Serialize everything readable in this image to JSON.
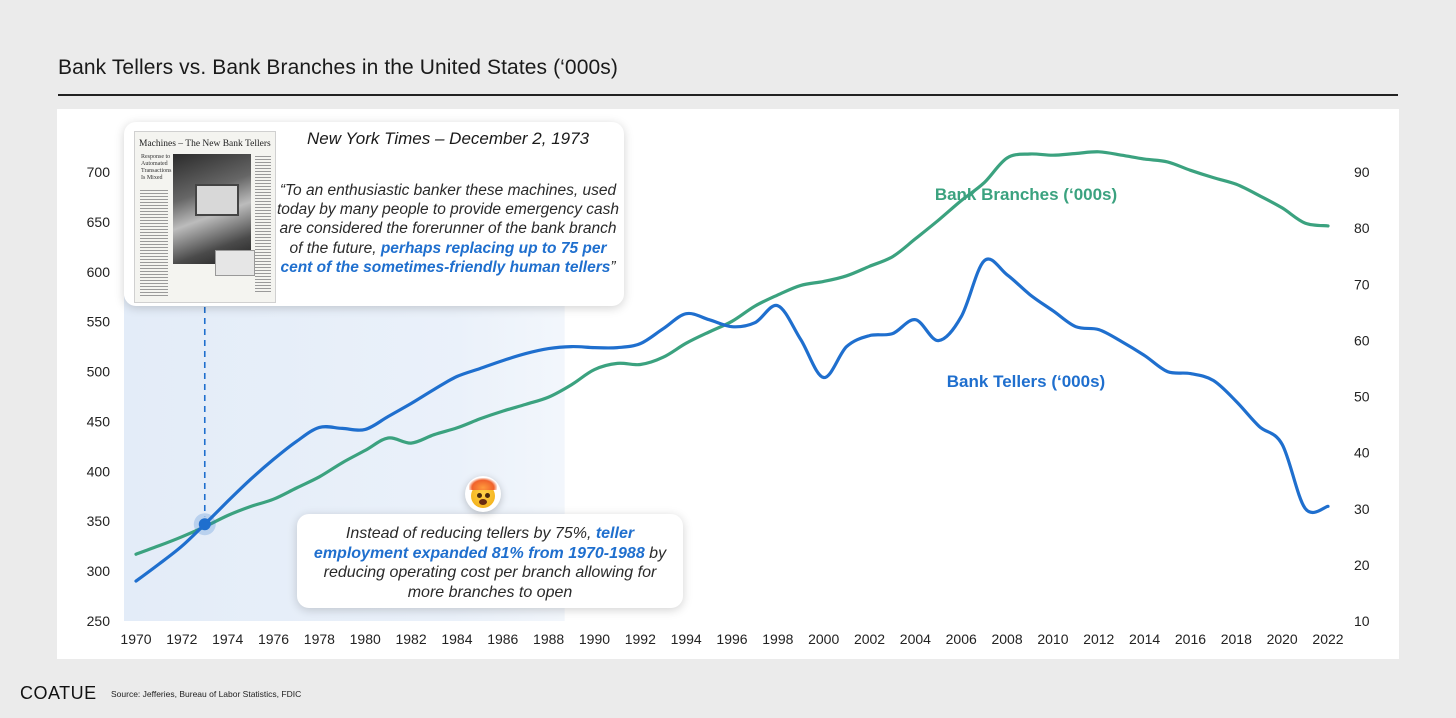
{
  "title": "Bank Tellers vs. Bank Branches in the United States (‘000s)",
  "logo": "COATUE",
  "source": "Source: Jefferies, Bureau of Labor Statistics, FDIC",
  "nyt_callout": {
    "source": "New York Times – December 2, 1973",
    "quote_plain": "“To an enthusiastic banker these machines, used today by many people to provide emergency cash are considered the forerunner of the bank branch of the future, ",
    "quote_highlight": "perhaps replacing up to 75 per cent of the sometimes-friendly human tellers",
    "quote_end": "”",
    "clipping_headline": "Machines – The New Bank Tellers",
    "clipping_subhead": "Response to Automated Transactions Is Mixed"
  },
  "insight_callout": {
    "text_before": "Instead of reducing tellers by 75%, ",
    "text_highlight": "teller employment expanded 81% from 1970-1988",
    "text_after": " by reducing operating cost per branch allowing for more branches to open",
    "emoji": "exploding-head-icon"
  },
  "colors": {
    "tellers": "#1f6fce",
    "branches": "#3ba27f",
    "shade": "#e3ecf8",
    "highlight": "#1f6fce"
  },
  "chart_data": {
    "type": "line",
    "title": "Bank Tellers vs. Bank Branches in the United States (‘000s)",
    "x_ticks": [
      1970,
      1972,
      1974,
      1976,
      1978,
      1980,
      1982,
      1984,
      1986,
      1988,
      1990,
      1992,
      1994,
      1996,
      1998,
      2000,
      2002,
      2004,
      2006,
      2008,
      2010,
      2012,
      2014,
      2016,
      2018,
      2020,
      2022
    ],
    "xlim": [
      1970,
      2022
    ],
    "y_left": {
      "ticks": [
        250,
        300,
        350,
        400,
        450,
        500,
        550,
        600,
        650,
        700
      ],
      "ylim": [
        250,
        700
      ],
      "label": ""
    },
    "y_right": {
      "ticks": [
        10,
        20,
        30,
        40,
        50,
        60,
        70,
        80,
        90
      ],
      "ylim": [
        10,
        90
      ],
      "label": ""
    },
    "shaded_region": {
      "x_from": 1970,
      "x_to": 1988.7
    },
    "marker": {
      "series": "Bank Tellers (‘000s)",
      "x": 1973,
      "y": 347
    },
    "series": [
      {
        "name": "Bank Tellers (‘000s)",
        "axis": "left",
        "x": [
          1970,
          1971,
          1972,
          1973,
          1974,
          1975,
          1976,
          1977,
          1978,
          1979,
          1980,
          1981,
          1982,
          1983,
          1984,
          1985,
          1986,
          1987,
          1988,
          1989,
          1990,
          1991,
          1992,
          1993,
          1994,
          1995,
          1996,
          1997,
          1998,
          1999,
          2000,
          2001,
          2002,
          2003,
          2004,
          2005,
          2006,
          2007,
          2008,
          2009,
          2010,
          2011,
          2012,
          2013,
          2014,
          2015,
          2016,
          2017,
          2018,
          2019,
          2020,
          2021,
          2022
        ],
        "values": [
          290,
          307,
          325,
          347,
          370,
          392,
          412,
          430,
          444,
          443,
          442,
          455,
          468,
          482,
          495,
          503,
          511,
          518,
          523,
          525,
          524,
          524,
          528,
          543,
          558,
          552,
          545,
          549,
          566,
          532,
          494,
          525,
          536,
          538,
          552,
          531,
          555,
          611,
          597,
          577,
          561,
          545,
          542,
          530,
          516,
          500,
          498,
          491,
          470,
          445,
          427,
          363,
          365
        ]
      },
      {
        "name": "Bank Branches (‘000s)",
        "axis": "right",
        "x": [
          1970,
          1971,
          1972,
          1973,
          1974,
          1975,
          1976,
          1977,
          1978,
          1979,
          1980,
          1981,
          1982,
          1983,
          1984,
          1985,
          1986,
          1987,
          1988,
          1989,
          1990,
          1991,
          1992,
          1993,
          1994,
          1995,
          1996,
          1997,
          1998,
          1999,
          2000,
          2001,
          2002,
          2003,
          2004,
          2005,
          2006,
          2007,
          2008,
          2009,
          2010,
          2011,
          2012,
          2013,
          2014,
          2015,
          2016,
          2017,
          2018,
          2019,
          2020,
          2021,
          2022
        ],
        "values": [
          21.9,
          23.4,
          25.0,
          26.8,
          28.8,
          30.4,
          31.7,
          33.7,
          35.7,
          38.2,
          40.4,
          42.6,
          41.7,
          43.2,
          44.4,
          46.0,
          47.4,
          48.6,
          49.9,
          52.1,
          54.8,
          55.9,
          55.7,
          57.0,
          59.5,
          61.5,
          63.4,
          66.1,
          68.1,
          69.8,
          70.5,
          71.5,
          73.2,
          74.9,
          78.1,
          81.4,
          84.9,
          88.1,
          92.5,
          93.2,
          93.0,
          93.3,
          93.6,
          93.0,
          92.3,
          91.8,
          90.3,
          89.0,
          87.8,
          85.8,
          83.6,
          80.9,
          80.4
        ]
      }
    ],
    "labels": [
      {
        "text": "Bank Branches (‘000s)",
        "series": "Bank Branches (‘000s)"
      },
      {
        "text": "Bank Tellers (‘000s)",
        "series": "Bank Tellers (‘000s)"
      }
    ],
    "grid": false,
    "legend": "none"
  }
}
